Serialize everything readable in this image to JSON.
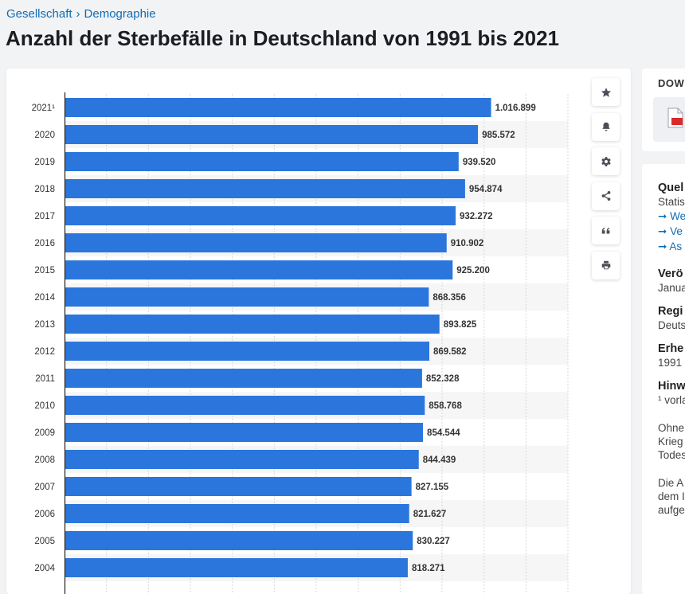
{
  "breadcrumb": {
    "items": [
      "Gesellschaft",
      "Demographie"
    ],
    "separator": "›"
  },
  "page_title": "Anzahl der Sterbefälle in Deutschland von 1991 bis 2021",
  "toolbar": {
    "icons": [
      "star-icon",
      "bell-icon",
      "gear-icon",
      "share-icon",
      "quote-icon",
      "print-icon"
    ]
  },
  "download": {
    "title": "DOW"
  },
  "sidebar": {
    "source_heading": "Quel",
    "source_text": "Statis",
    "links": [
      "We",
      "Ve",
      "As"
    ],
    "published_heading": "Verö",
    "published_value": "Janua",
    "region_heading": "Regi",
    "region_value": "Deuts",
    "survey_heading": "Erhe",
    "survey_value": "1991",
    "notes_heading": "Hinw",
    "notes_value": "¹ vorla",
    "extra_lines": [
      "Ohne",
      "Krieg",
      "Todes"
    ],
    "extra_lines_2": [
      "Die A",
      "dem I",
      "aufge"
    ]
  },
  "colors": {
    "bar": "#2a76dd",
    "stripe": "#f6f6f6",
    "accent": "#0d6db7"
  },
  "chart_data": {
    "type": "bar",
    "orientation": "horizontal",
    "title": "Anzahl der Sterbefälle in Deutschland von 1991 bis 2021",
    "categories": [
      "2021¹",
      "2020",
      "2019",
      "2018",
      "2017",
      "2016",
      "2015",
      "2014",
      "2013",
      "2012",
      "2011",
      "2010",
      "2009",
      "2008",
      "2007",
      "2006",
      "2005",
      "2004"
    ],
    "values": [
      1016899,
      985572,
      939520,
      954874,
      932272,
      910902,
      925200,
      868356,
      893825,
      869582,
      852328,
      858768,
      854544,
      844439,
      827155,
      821627,
      830227,
      818271
    ],
    "value_labels": [
      "1.016.899",
      "985.572",
      "939.520",
      "954.874",
      "932.272",
      "910.902",
      "925.200",
      "868.356",
      "893.825",
      "869.582",
      "852.328",
      "858.768",
      "854.544",
      "844.439",
      "827.155",
      "821.627",
      "830.227",
      "818.271"
    ],
    "xlim": [
      0,
      1200000
    ],
    "x_grid_step": 100000,
    "xlabel": "",
    "ylabel": ""
  }
}
